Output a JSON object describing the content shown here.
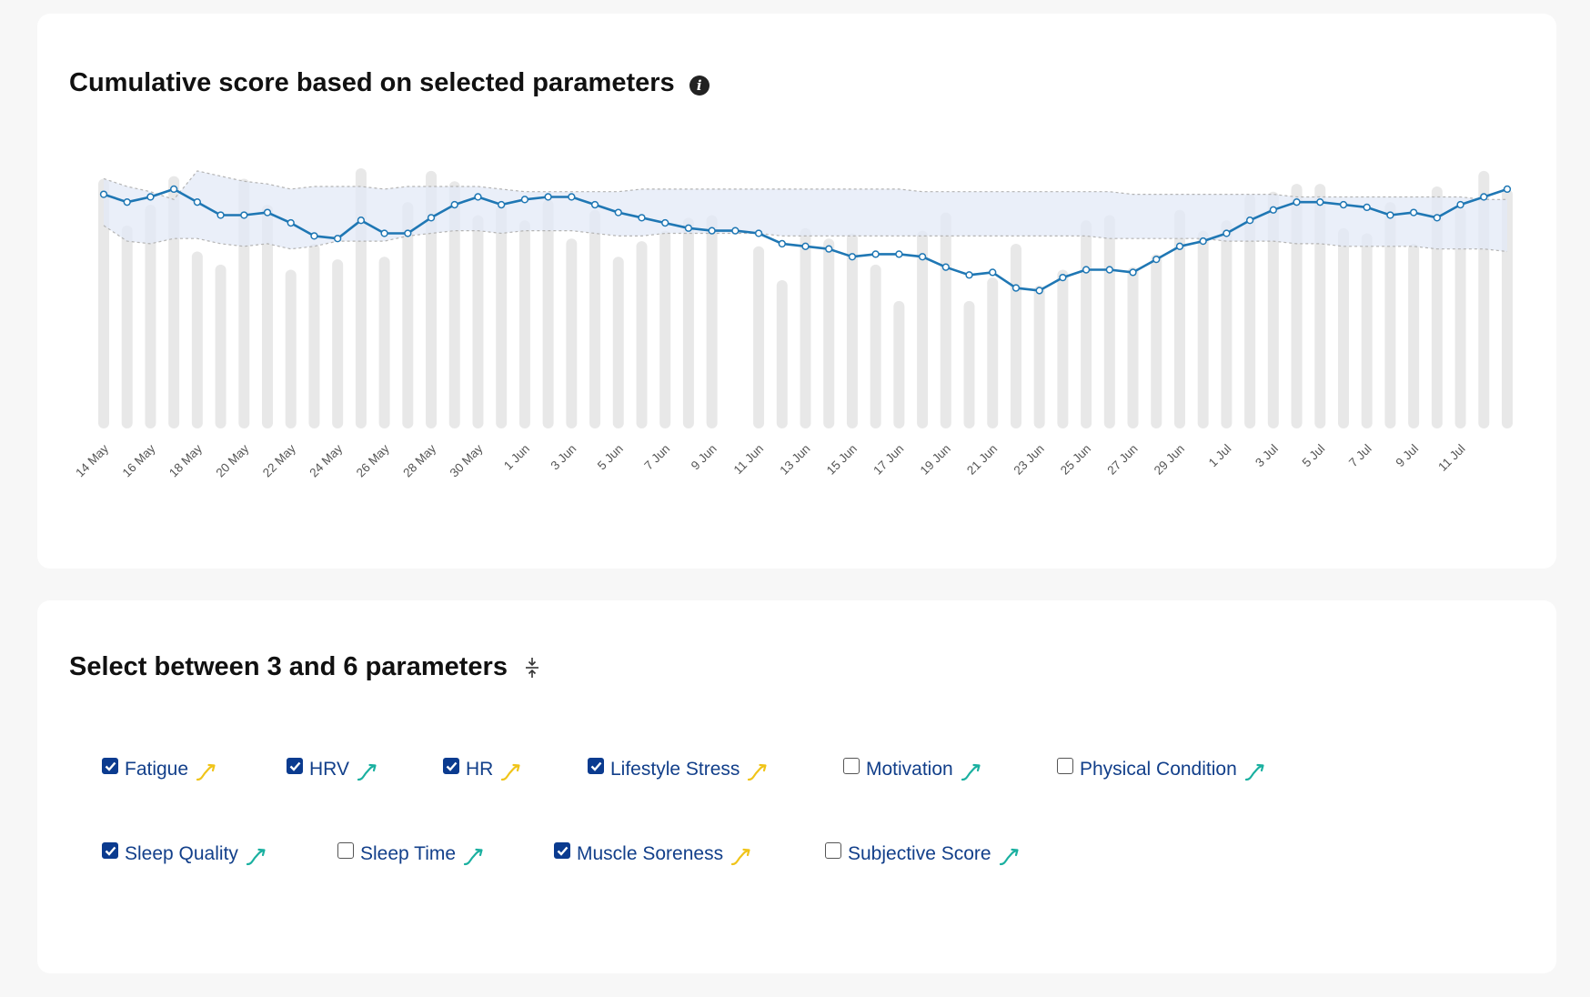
{
  "chart_card": {
    "title": "Cumulative score based on selected parameters",
    "info_icon": "info-icon"
  },
  "params_card": {
    "title": "Select between 3 and 6 parameters",
    "collapse_icon": "collapse-vertical-icon"
  },
  "colors": {
    "line": "#1f77b4",
    "band_fill": "#e3eaf7",
    "band_stroke": "#b4b4b4",
    "bar": "#e8e8e8",
    "trend_yellow": "#f0c419",
    "trend_teal": "#1ab0a0",
    "checkbox_checked": "#0b3b8f",
    "param_text": "#123f8a"
  },
  "parameters": [
    {
      "label": "Fatigue",
      "checked": true,
      "trend": "yellow"
    },
    {
      "label": "HRV",
      "checked": true,
      "trend": "teal"
    },
    {
      "label": "HR",
      "checked": true,
      "trend": "yellow"
    },
    {
      "label": "Lifestyle Stress",
      "checked": true,
      "trend": "yellow"
    },
    {
      "label": "Motivation",
      "checked": false,
      "trend": "teal"
    },
    {
      "label": "Physical Condition",
      "checked": false,
      "trend": "teal"
    },
    {
      "label": "Sleep Quality",
      "checked": true,
      "trend": "teal"
    },
    {
      "label": "Sleep Time",
      "checked": false,
      "trend": "teal"
    },
    {
      "label": "Muscle Soreness",
      "checked": true,
      "trend": "yellow"
    },
    {
      "label": "Subjective Score",
      "checked": false,
      "trend": "teal"
    }
  ],
  "chart_data": {
    "type": "bar+line",
    "title": "Cumulative score based on selected parameters",
    "xlabel": "",
    "ylabel": "",
    "ylim": [
      0,
      100
    ],
    "grid": false,
    "x_ticks": [
      "14 May",
      "16 May",
      "18 May",
      "20 May",
      "22 May",
      "24 May",
      "26 May",
      "28 May",
      "30 May",
      "1 Jun",
      "3 Jun",
      "5 Jun",
      "7 Jun",
      "9 Jun",
      "11 Jun",
      "13 Jun",
      "15 Jun",
      "17 Jun",
      "19 Jun",
      "21 Jun",
      "23 Jun",
      "25 Jun",
      "27 Jun",
      "29 Jun",
      "1 Jul",
      "3 Jul",
      "5 Jul",
      "7 Jul",
      "9 Jul",
      "11 Jul"
    ],
    "days": 61,
    "bar_values": [
      96,
      78,
      86,
      97,
      68,
      63,
      96,
      86,
      61,
      71,
      65,
      100,
      66,
      87,
      99,
      95,
      82,
      86,
      80,
      88,
      73,
      84,
      66,
      72,
      76,
      81,
      82,
      null,
      70,
      57,
      77,
      73,
      75,
      63,
      49,
      76,
      83,
      49,
      58,
      71,
      55,
      61,
      80,
      82,
      62,
      67,
      84,
      76,
      80,
      90,
      91,
      94,
      94,
      77,
      75,
      87,
      71,
      93,
      85,
      99,
      92
    ],
    "line_values": [
      90,
      87,
      89,
      92,
      87,
      82,
      82,
      83,
      79,
      74,
      73,
      80,
      75,
      75,
      81,
      86,
      89,
      86,
      88,
      89,
      89,
      86,
      83,
      81,
      79,
      77,
      76,
      76,
      75,
      71,
      70,
      69,
      66,
      67,
      67,
      66,
      62,
      59,
      60,
      54,
      53,
      58,
      61,
      61,
      60,
      65,
      70,
      72,
      75,
      80,
      84,
      87,
      87,
      86,
      85,
      82,
      83,
      81,
      86,
      89,
      92
    ],
    "band_upper": [
      96,
      93,
      91,
      88,
      99,
      97,
      95,
      94,
      92,
      93,
      93,
      93,
      92,
      93,
      93,
      93,
      93,
      92,
      91,
      91,
      91,
      91,
      91,
      92,
      92,
      92,
      92,
      92,
      92,
      92,
      92,
      92,
      92,
      92,
      92,
      91,
      91,
      91,
      91,
      91,
      91,
      91,
      91,
      91,
      90,
      90,
      90,
      90,
      90,
      90,
      90,
      89,
      89,
      89,
      89,
      89,
      89,
      89,
      89,
      88,
      88
    ],
    "band_lower": [
      78,
      72,
      71,
      73,
      73,
      71,
      70,
      71,
      69,
      70,
      72,
      72,
      72,
      74,
      75,
      76,
      76,
      75,
      76,
      76,
      76,
      75,
      74,
      74,
      75,
      75,
      75,
      75,
      75,
      74,
      74,
      74,
      74,
      74,
      74,
      74,
      74,
      74,
      74,
      74,
      74,
      74,
      74,
      73,
      73,
      73,
      73,
      73,
      72,
      72,
      72,
      71,
      71,
      70,
      70,
      70,
      70,
      69,
      69,
      69,
      68
    ]
  }
}
